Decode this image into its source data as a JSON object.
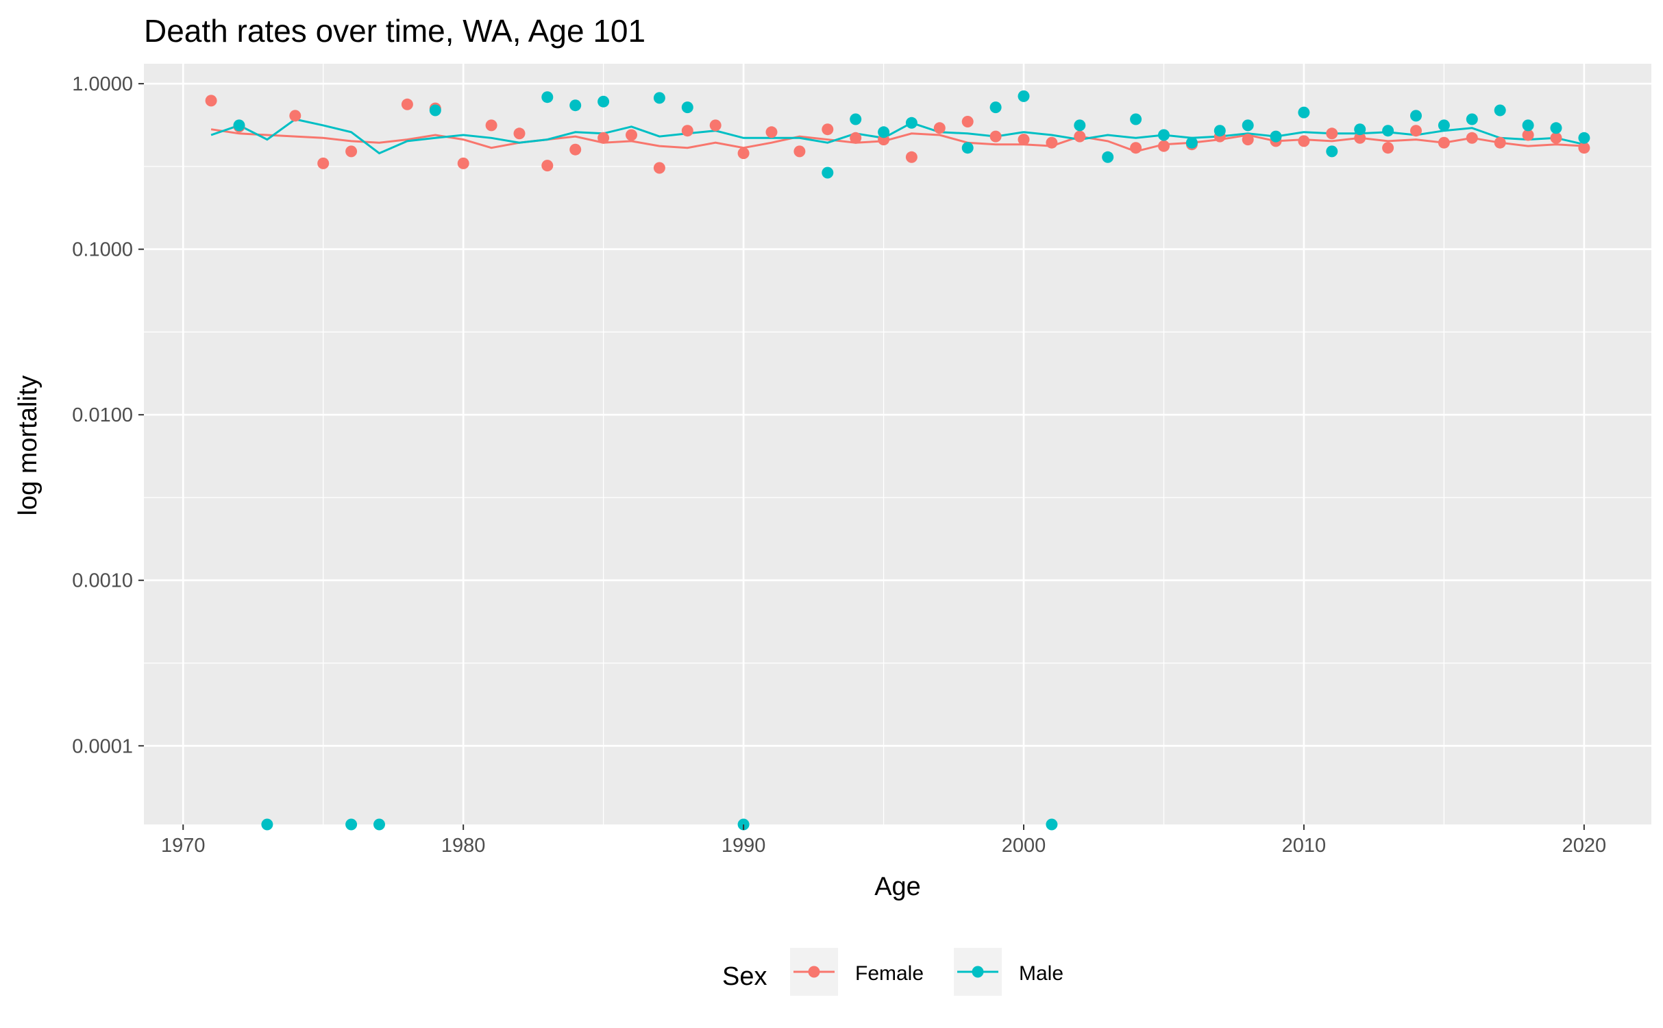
{
  "chart_data": {
    "type": "scatter",
    "title": "Death rates over time, WA, Age 101",
    "xlabel": "Age",
    "ylabel": "log mortality",
    "y_scale": "log10",
    "xlim": [
      1968.6,
      2022.4
    ],
    "ylim": [
      3.35e-05,
      1.32
    ],
    "x_ticks": [
      1970,
      1980,
      1990,
      2000,
      2010,
      2020
    ],
    "x_tick_labels": [
      "1970",
      "1980",
      "1990",
      "2000",
      "2010",
      "2020"
    ],
    "y_ticks": [
      0.0001,
      0.001,
      0.01,
      0.1,
      1
    ],
    "y_tick_labels": [
      "0.0001",
      "0.0010",
      "0.0100",
      "0.1000",
      "1.0000"
    ],
    "grid": true,
    "legend": {
      "title": "Sex",
      "position": "bottom",
      "entries": [
        "Female",
        "Male"
      ]
    },
    "series": [
      {
        "name": "Female",
        "color": "#F8766D",
        "points": [
          [
            1971,
            0.79
          ],
          [
            1972,
            0.55
          ],
          [
            1974,
            0.64
          ],
          [
            1975,
            0.33
          ],
          [
            1976,
            0.39
          ],
          [
            1978,
            0.75
          ],
          [
            1979,
            0.71
          ],
          [
            1980,
            0.33
          ],
          [
            1981,
            0.56
          ],
          [
            1982,
            0.5
          ],
          [
            1983,
            0.32
          ],
          [
            1984,
            0.4
          ],
          [
            1985,
            0.47
          ],
          [
            1986,
            0.49
          ],
          [
            1987,
            0.31
          ],
          [
            1988,
            0.52
          ],
          [
            1989,
            0.56
          ],
          [
            1990,
            0.38
          ],
          [
            1991,
            0.51
          ],
          [
            1992,
            0.39
          ],
          [
            1993,
            0.53
          ],
          [
            1994,
            0.47
          ],
          [
            1995,
            0.46
          ],
          [
            1996,
            0.36
          ],
          [
            1997,
            0.54
          ],
          [
            1998,
            0.59
          ],
          [
            1999,
            0.48
          ],
          [
            2000,
            0.46
          ],
          [
            2001,
            0.44
          ],
          [
            2002,
            0.48
          ],
          [
            2004,
            0.41
          ],
          [
            2005,
            0.42
          ],
          [
            2006,
            0.43
          ],
          [
            2007,
            0.48
          ],
          [
            2008,
            0.46
          ],
          [
            2009,
            0.45
          ],
          [
            2010,
            0.45
          ],
          [
            2011,
            0.5
          ],
          [
            2012,
            0.47
          ],
          [
            2013,
            0.41
          ],
          [
            2014,
            0.52
          ],
          [
            2015,
            0.44
          ],
          [
            2016,
            0.47
          ],
          [
            2017,
            0.44
          ],
          [
            2018,
            0.49
          ],
          [
            2019,
            0.47
          ],
          [
            2020,
            0.41
          ]
        ],
        "trend": [
          [
            1971,
            0.53
          ],
          [
            1972,
            0.5
          ],
          [
            1973,
            0.49
          ],
          [
            1974,
            0.48
          ],
          [
            1975,
            0.47
          ],
          [
            1976,
            0.45
          ],
          [
            1977,
            0.44
          ],
          [
            1978,
            0.46
          ],
          [
            1979,
            0.49
          ],
          [
            1980,
            0.46
          ],
          [
            1981,
            0.41
          ],
          [
            1982,
            0.44
          ],
          [
            1983,
            0.46
          ],
          [
            1984,
            0.48
          ],
          [
            1985,
            0.44
          ],
          [
            1986,
            0.45
          ],
          [
            1987,
            0.42
          ],
          [
            1988,
            0.41
          ],
          [
            1989,
            0.44
          ],
          [
            1990,
            0.41
          ],
          [
            1991,
            0.44
          ],
          [
            1992,
            0.48
          ],
          [
            1993,
            0.46
          ],
          [
            1994,
            0.44
          ],
          [
            1995,
            0.45
          ],
          [
            1996,
            0.5
          ],
          [
            1997,
            0.49
          ],
          [
            1998,
            0.44
          ],
          [
            1999,
            0.43
          ],
          [
            2000,
            0.43
          ],
          [
            2001,
            0.42
          ],
          [
            2002,
            0.48
          ],
          [
            2003,
            0.45
          ],
          [
            2004,
            0.39
          ],
          [
            2005,
            0.43
          ],
          [
            2006,
            0.44
          ],
          [
            2007,
            0.46
          ],
          [
            2008,
            0.49
          ],
          [
            2009,
            0.45
          ],
          [
            2010,
            0.46
          ],
          [
            2011,
            0.45
          ],
          [
            2012,
            0.47
          ],
          [
            2013,
            0.45
          ],
          [
            2014,
            0.46
          ],
          [
            2015,
            0.44
          ],
          [
            2016,
            0.47
          ],
          [
            2017,
            0.44
          ],
          [
            2018,
            0.42
          ],
          [
            2019,
            0.43
          ],
          [
            2020,
            0.42
          ]
        ]
      },
      {
        "name": "Male",
        "color": "#00BFC4",
        "points": [
          [
            1972,
            0.56
          ],
          [
            1973,
            3.35e-05
          ],
          [
            1976,
            3.35e-05
          ],
          [
            1977,
            3.35e-05
          ],
          [
            1979,
            0.69
          ],
          [
            1983,
            0.83
          ],
          [
            1984,
            0.74
          ],
          [
            1985,
            0.78
          ],
          [
            1987,
            0.82
          ],
          [
            1988,
            0.72
          ],
          [
            1990,
            3.35e-05
          ],
          [
            1993,
            0.29
          ],
          [
            1994,
            0.61
          ],
          [
            1995,
            0.51
          ],
          [
            1996,
            0.58
          ],
          [
            1998,
            0.41
          ],
          [
            1999,
            0.72
          ],
          [
            2000,
            0.84
          ],
          [
            2001,
            3.35e-05
          ],
          [
            2002,
            0.56
          ],
          [
            2003,
            0.36
          ],
          [
            2004,
            0.61
          ],
          [
            2005,
            0.49
          ],
          [
            2006,
            0.44
          ],
          [
            2007,
            0.52
          ],
          [
            2008,
            0.56
          ],
          [
            2009,
            0.48
          ],
          [
            2010,
            0.67
          ],
          [
            2011,
            0.39
          ],
          [
            2012,
            0.53
          ],
          [
            2013,
            0.52
          ],
          [
            2014,
            0.64
          ],
          [
            2015,
            0.56
          ],
          [
            2016,
            0.61
          ],
          [
            2017,
            0.69
          ],
          [
            2018,
            0.56
          ],
          [
            2019,
            0.54
          ],
          [
            2020,
            0.47
          ]
        ],
        "trend": [
          [
            1971,
            0.49
          ],
          [
            1972,
            0.56
          ],
          [
            1973,
            0.46
          ],
          [
            1974,
            0.61
          ],
          [
            1975,
            0.56
          ],
          [
            1976,
            0.51
          ],
          [
            1977,
            0.38
          ],
          [
            1978,
            0.45
          ],
          [
            1979,
            0.47
          ],
          [
            1980,
            0.49
          ],
          [
            1981,
            0.47
          ],
          [
            1982,
            0.44
          ],
          [
            1983,
            0.46
          ],
          [
            1984,
            0.51
          ],
          [
            1985,
            0.5
          ],
          [
            1986,
            0.55
          ],
          [
            1987,
            0.48
          ],
          [
            1988,
            0.5
          ],
          [
            1989,
            0.52
          ],
          [
            1990,
            0.47
          ],
          [
            1991,
            0.47
          ],
          [
            1992,
            0.47
          ],
          [
            1993,
            0.44
          ],
          [
            1994,
            0.5
          ],
          [
            1995,
            0.47
          ],
          [
            1996,
            0.58
          ],
          [
            1997,
            0.51
          ],
          [
            1998,
            0.5
          ],
          [
            1999,
            0.48
          ],
          [
            2000,
            0.51
          ],
          [
            2001,
            0.49
          ],
          [
            2002,
            0.46
          ],
          [
            2003,
            0.49
          ],
          [
            2004,
            0.47
          ],
          [
            2005,
            0.49
          ],
          [
            2006,
            0.47
          ],
          [
            2007,
            0.48
          ],
          [
            2008,
            0.5
          ],
          [
            2009,
            0.48
          ],
          [
            2010,
            0.51
          ],
          [
            2011,
            0.5
          ],
          [
            2012,
            0.5
          ],
          [
            2013,
            0.51
          ],
          [
            2014,
            0.49
          ],
          [
            2015,
            0.52
          ],
          [
            2016,
            0.54
          ],
          [
            2017,
            0.47
          ],
          [
            2018,
            0.46
          ],
          [
            2019,
            0.47
          ],
          [
            2020,
            0.43
          ]
        ]
      }
    ]
  }
}
